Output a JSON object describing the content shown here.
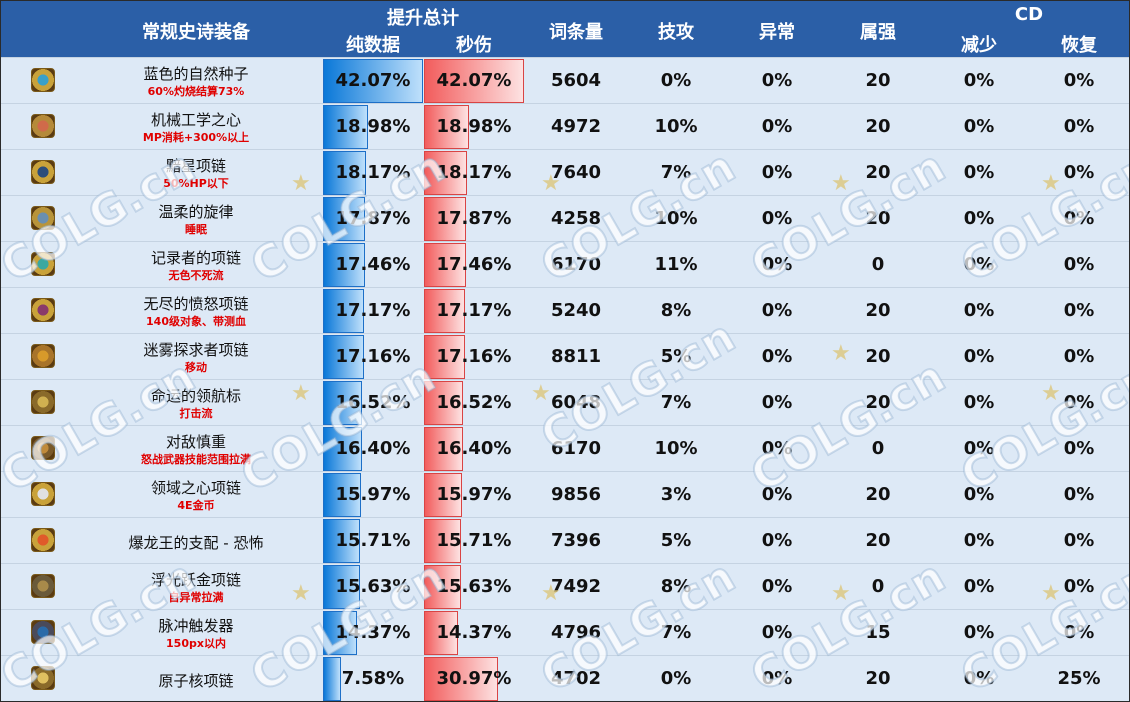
{
  "header": {
    "name_col": "常规史诗装备",
    "total_group": "提升总计",
    "pure_data": "纯数据",
    "dps": "秒伤",
    "entry_count": "词条量",
    "skill_atk": "技攻",
    "abnormal": "异常",
    "element": "属强",
    "cd_group": "CD",
    "cd_reduce": "减少",
    "cd_recover": "恢复"
  },
  "watermark": "COLG.cn",
  "colors": {
    "header_bg": "#2b5fa7",
    "table_bg": "#dde9f6",
    "note_red": "#e00000",
    "blue_bar": "#0a78d8",
    "red_bar": "#f25c5c"
  },
  "rows": [
    {
      "name": "蓝色的自然种子",
      "note": "60%灼烧结算73%",
      "pure": "42.07%",
      "pure_v": 42.07,
      "dps": "42.07%",
      "dps_v": 42.07,
      "entries": "5604",
      "skill": "0%",
      "abn": "0%",
      "elem": "20",
      "cdr": "0%",
      "cdrec": "0%",
      "icon": "nature-seed-icon",
      "c1": "#3aa0c8",
      "c2": "#c9a23a"
    },
    {
      "name": "机械工学之心",
      "note": "MP消耗+300%以上",
      "pure": "18.98%",
      "pure_v": 18.98,
      "dps": "18.98%",
      "dps_v": 18.98,
      "entries": "4972",
      "skill": "10%",
      "abn": "0%",
      "elem": "20",
      "cdr": "0%",
      "cdrec": "0%",
      "icon": "mechanical-heart-icon",
      "c1": "#d06a4a",
      "c2": "#b58a3a"
    },
    {
      "name": "黯星项链",
      "note": "50%HP以下",
      "pure": "18.17%",
      "pure_v": 18.17,
      "dps": "18.17%",
      "dps_v": 18.17,
      "entries": "7640",
      "skill": "7%",
      "abn": "0%",
      "elem": "20",
      "cdr": "0%",
      "cdrec": "0%",
      "icon": "dark-star-necklace-icon",
      "c1": "#2c4d7a",
      "c2": "#c9a23a"
    },
    {
      "name": "温柔的旋律",
      "note": "睡眠",
      "pure": "17.87%",
      "pure_v": 17.87,
      "dps": "17.87%",
      "dps_v": 17.87,
      "entries": "4258",
      "skill": "10%",
      "abn": "0%",
      "elem": "20",
      "cdr": "0%",
      "cdrec": "0%",
      "icon": "gentle-melody-icon",
      "c1": "#6a8fb0",
      "c2": "#b8943a"
    },
    {
      "name": "记录者的项链",
      "note": "无色不死流",
      "pure": "17.46%",
      "pure_v": 17.46,
      "dps": "17.46%",
      "dps_v": 17.46,
      "entries": "6170",
      "skill": "11%",
      "abn": "0%",
      "elem": "0",
      "cdr": "0%",
      "cdrec": "0%",
      "icon": "recorder-necklace-icon",
      "c1": "#3aa8a0",
      "c2": "#c9a23a"
    },
    {
      "name": "无尽的愤怒项链",
      "note": "140级对象、带测血",
      "pure": "17.17%",
      "pure_v": 17.17,
      "dps": "17.17%",
      "dps_v": 17.17,
      "entries": "5240",
      "skill": "8%",
      "abn": "0%",
      "elem": "20",
      "cdr": "0%",
      "cdrec": "0%",
      "icon": "endless-rage-necklace-icon",
      "c1": "#8a3a6a",
      "c2": "#c9a23a"
    },
    {
      "name": "迷雾探求者项链",
      "note": "移动",
      "pure": "17.16%",
      "pure_v": 17.16,
      "dps": "17.16%",
      "dps_v": 17.16,
      "entries": "8811",
      "skill": "5%",
      "abn": "0%",
      "elem": "20",
      "cdr": "0%",
      "cdrec": "0%",
      "icon": "mist-seeker-necklace-icon",
      "c1": "#d89a2a",
      "c2": "#a8742a"
    },
    {
      "name": "命运的领航标",
      "note": "打击流",
      "pure": "16.52%",
      "pure_v": 16.52,
      "dps": "16.52%",
      "dps_v": 16.52,
      "entries": "6048",
      "skill": "7%",
      "abn": "0%",
      "elem": "20",
      "cdr": "0%",
      "cdrec": "0%",
      "icon": "fate-beacon-icon",
      "c1": "#d0b050",
      "c2": "#8a6a2a"
    },
    {
      "name": "对敌慎重",
      "note": "怒战武器技能范围拉满",
      "pure": "16.40%",
      "pure_v": 16.4,
      "dps": "16.40%",
      "dps_v": 16.4,
      "entries": "6170",
      "skill": "10%",
      "abn": "0%",
      "elem": "0",
      "cdr": "0%",
      "cdrec": "0%",
      "icon": "caution-icon",
      "c1": "#c08a3a",
      "c2": "#7a5a2a"
    },
    {
      "name": "领域之心项链",
      "note": "4E金币",
      "pure": "15.97%",
      "pure_v": 15.97,
      "dps": "15.97%",
      "dps_v": 15.97,
      "entries": "9856",
      "skill": "3%",
      "abn": "0%",
      "elem": "20",
      "cdr": "0%",
      "cdrec": "0%",
      "icon": "domain-heart-necklace-icon",
      "c1": "#e0e0e0",
      "c2": "#c9a23a"
    },
    {
      "name": "爆龙王的支配 - 恐怖",
      "note": "",
      "pure": "15.71%",
      "pure_v": 15.71,
      "dps": "15.71%",
      "dps_v": 15.71,
      "entries": "7396",
      "skill": "5%",
      "abn": "0%",
      "elem": "20",
      "cdr": "0%",
      "cdrec": "0%",
      "icon": "dragon-king-icon",
      "c1": "#e05a2a",
      "c2": "#c9a23a"
    },
    {
      "name": "浮光跃金项链",
      "note": "自异常拉满",
      "pure": "15.63%",
      "pure_v": 15.63,
      "dps": "15.63%",
      "dps_v": 15.63,
      "entries": "7492",
      "skill": "8%",
      "abn": "0%",
      "elem": "0",
      "cdr": "0%",
      "cdrec": "0%",
      "icon": "floating-gold-necklace-icon",
      "c1": "#a88a4a",
      "c2": "#6a5a3a"
    },
    {
      "name": "脉冲触发器",
      "note": "150px以内",
      "pure": "14.37%",
      "pure_v": 14.37,
      "dps": "14.37%",
      "dps_v": 14.37,
      "entries": "4796",
      "skill": "7%",
      "abn": "0%",
      "elem": "15",
      "cdr": "0%",
      "cdrec": "0%",
      "icon": "pulse-trigger-icon",
      "c1": "#2a6aa8",
      "c2": "#4a4a5a"
    },
    {
      "name": "原子核项链",
      "note": "",
      "pure": "7.58%",
      "pure_v": 7.58,
      "dps": "30.97%",
      "dps_v": 30.97,
      "entries": "4702",
      "skill": "0%",
      "abn": "0%",
      "elem": "20",
      "cdr": "0%",
      "cdrec": "25%",
      "icon": "atomic-nucleus-necklace-icon",
      "c1": "#e0c060",
      "c2": "#8a6a2a"
    }
  ]
}
